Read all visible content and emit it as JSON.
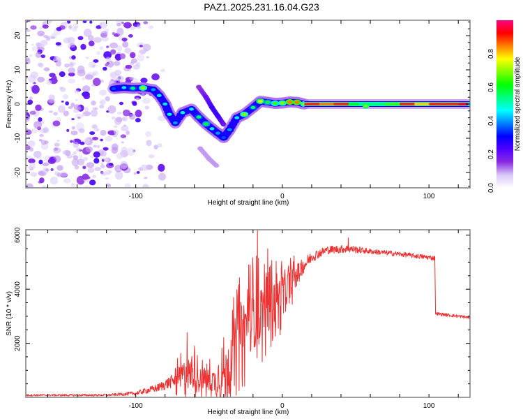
{
  "title": "PAZ1.2025.231.16.04.G23",
  "chart_data": [
    {
      "type": "heatmap",
      "name": "spectrogram",
      "xlabel": "Height of straight line (km)",
      "ylabel": "Frequency (Hz)",
      "xlim": [
        -175,
        128
      ],
      "ylim": [
        -24.5,
        24.5
      ],
      "xticks": [
        -100,
        0,
        100
      ],
      "xtick_labels": [
        "-100",
        "0",
        "100"
      ],
      "yticks": [
        -20,
        -10,
        0,
        10,
        20
      ],
      "ytick_labels": [
        "-20",
        "-10",
        "0",
        "10",
        "20"
      ],
      "colorbar": {
        "label": "Normalized spectral amplitude",
        "range": [
          0.0,
          1.0
        ],
        "ticks": [
          0.0,
          0.2,
          0.4,
          0.6,
          0.8
        ],
        "tick_labels": [
          "0.0",
          "0.2",
          "0.4",
          "0.6",
          "0.8"
        ],
        "colormap": [
          "#ffffff",
          "#d8c8f8",
          "#8a2be2",
          "#5000ff",
          "#0000ff",
          "#0080ff",
          "#00ffff",
          "#00ff80",
          "#00ff00",
          "#80ff00",
          "#ffff00",
          "#ff8000",
          "#ff0000",
          "#ff0080"
        ]
      },
      "noise_region": {
        "x_range": [
          -175,
          -95
        ],
        "y_range": [
          -24.5,
          24.5
        ],
        "amplitude_range": [
          0.05,
          0.25
        ]
      },
      "ridge_main": [
        {
          "x": -115,
          "y": 4.5,
          "a": 0.35
        },
        {
          "x": -108,
          "y": 4.8,
          "a": 0.45
        },
        {
          "x": -102,
          "y": 4.6,
          "a": 0.55
        },
        {
          "x": -95,
          "y": 4.7,
          "a": 0.7
        },
        {
          "x": -88,
          "y": 4.2,
          "a": 0.4
        },
        {
          "x": -84,
          "y": 2.5,
          "a": 0.45
        },
        {
          "x": -80,
          "y": 0.0,
          "a": 0.45
        },
        {
          "x": -77,
          "y": -3.0,
          "a": 0.5
        },
        {
          "x": -73,
          "y": -5.5,
          "a": 0.4
        },
        {
          "x": -68,
          "y": -2.5,
          "a": 0.5
        },
        {
          "x": -62,
          "y": -1.5,
          "a": 0.45
        },
        {
          "x": -57,
          "y": -3.8,
          "a": 0.55
        },
        {
          "x": -52,
          "y": -5.8,
          "a": 0.6
        },
        {
          "x": -48,
          "y": -7.2,
          "a": 0.45
        },
        {
          "x": -44,
          "y": -8.5,
          "a": 0.4
        },
        {
          "x": -40,
          "y": -9.8,
          "a": 0.35
        },
        {
          "x": -36,
          "y": -7.5,
          "a": 0.4
        },
        {
          "x": -31,
          "y": -4.0,
          "a": 0.45
        },
        {
          "x": -26,
          "y": -3.0,
          "a": 0.7
        },
        {
          "x": -20,
          "y": -1.0,
          "a": 0.55
        },
        {
          "x": -15,
          "y": 0.8,
          "a": 0.75
        },
        {
          "x": -10,
          "y": 0.5,
          "a": 0.6
        },
        {
          "x": -5,
          "y": 0.2,
          "a": 0.65
        },
        {
          "x": 0,
          "y": 0.3,
          "a": 0.7
        },
        {
          "x": 5,
          "y": 0.6,
          "a": 0.85
        },
        {
          "x": 10,
          "y": 0.5,
          "a": 0.85
        },
        {
          "x": 15,
          "y": 0.0,
          "a": 0.7
        }
      ],
      "ridge_secondary": [
        {
          "x": -57,
          "y": 5.0,
          "a": 0.15
        },
        {
          "x": -52,
          "y": 2.0,
          "a": 0.2
        },
        {
          "x": -48,
          "y": -1.0,
          "a": 0.25
        },
        {
          "x": -44,
          "y": -3.5,
          "a": 0.25
        },
        {
          "x": -40,
          "y": -6.0,
          "a": 0.2
        },
        {
          "x": -56,
          "y": -13.0,
          "a": 0.1
        },
        {
          "x": -50,
          "y": -16.0,
          "a": 0.1
        },
        {
          "x": -45,
          "y": -18.0,
          "a": 0.1
        }
      ],
      "carrier_line": {
        "y": 0.0,
        "x_range": [
          15,
          128
        ],
        "amplitude_segments": [
          {
            "x": 20,
            "a": 0.9
          },
          {
            "x": 30,
            "a": 0.85
          },
          {
            "x": 40,
            "a": 0.9
          },
          {
            "x": 50,
            "a": 0.6
          },
          {
            "x": 57,
            "a": 0.55
          },
          {
            "x": 65,
            "a": 0.55
          },
          {
            "x": 75,
            "a": 0.65
          },
          {
            "x": 85,
            "a": 0.9
          },
          {
            "x": 95,
            "a": 0.8
          },
          {
            "x": 105,
            "a": 0.9
          },
          {
            "x": 115,
            "a": 0.9
          },
          {
            "x": 125,
            "a": 0.95
          }
        ]
      }
    },
    {
      "type": "line",
      "name": "snr",
      "xlabel": "Height of straight line (km)",
      "ylabel": "SNR (10 * v/v)",
      "xlim": [
        -175,
        128
      ],
      "ylim": [
        0,
        6200
      ],
      "xticks": [
        -100,
        0,
        100
      ],
      "xtick_labels": [
        "-100",
        "0",
        "100"
      ],
      "yticks": [
        2000,
        4000,
        6000
      ],
      "ytick_labels": [
        "2000",
        "4000",
        "6000"
      ],
      "color": "#f03030",
      "envelope": [
        {
          "x": -175,
          "base": 80,
          "spread": 80
        },
        {
          "x": -120,
          "base": 80,
          "spread": 80
        },
        {
          "x": -100,
          "base": 150,
          "spread": 150
        },
        {
          "x": -85,
          "base": 350,
          "spread": 300
        },
        {
          "x": -75,
          "base": 600,
          "spread": 500
        },
        {
          "x": -65,
          "base": 900,
          "spread": 1200
        },
        {
          "x": -55,
          "base": 700,
          "spread": 800
        },
        {
          "x": -45,
          "base": 600,
          "spread": 900
        },
        {
          "x": -38,
          "base": 1000,
          "spread": 1600
        },
        {
          "x": -30,
          "base": 2300,
          "spread": 2200
        },
        {
          "x": -20,
          "base": 3000,
          "spread": 2400
        },
        {
          "x": -10,
          "base": 3400,
          "spread": 1800
        },
        {
          "x": 0,
          "base": 3800,
          "spread": 1400
        },
        {
          "x": 10,
          "base": 4600,
          "spread": 700
        },
        {
          "x": 20,
          "base": 5200,
          "spread": 400
        },
        {
          "x": 30,
          "base": 5450,
          "spread": 300
        },
        {
          "x": 45,
          "base": 5500,
          "spread": 300
        },
        {
          "x": 60,
          "base": 5400,
          "spread": 200
        },
        {
          "x": 80,
          "base": 5300,
          "spread": 180
        },
        {
          "x": 104,
          "base": 5150,
          "spread": 180
        },
        {
          "x": 104.5,
          "base": 3100,
          "spread": 120
        },
        {
          "x": 128,
          "base": 2950,
          "spread": 120
        }
      ],
      "peaks": [
        {
          "x": -65,
          "y": 2400
        },
        {
          "x": -60,
          "y": 1900
        },
        {
          "x": -30,
          "y": 3900
        },
        {
          "x": -23,
          "y": 4900
        },
        {
          "x": -17,
          "y": 6200
        },
        {
          "x": -10,
          "y": 5500
        },
        {
          "x": 45,
          "y": 5900
        }
      ]
    }
  ]
}
